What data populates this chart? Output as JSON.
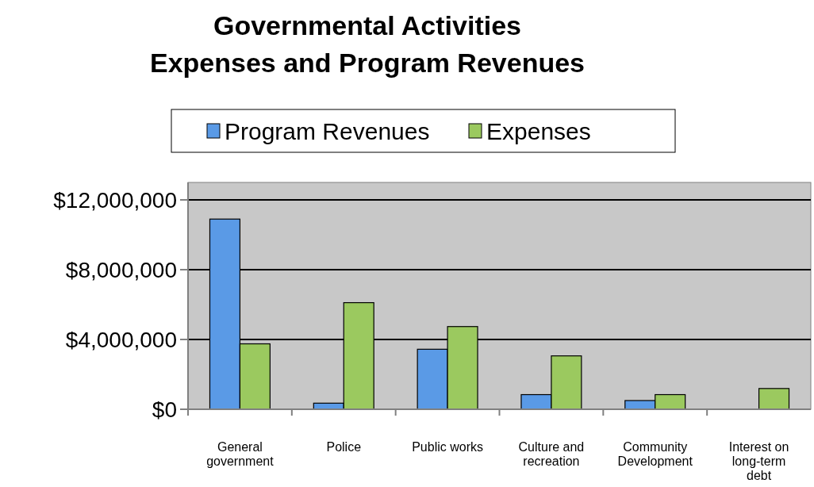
{
  "chart_data": {
    "type": "bar",
    "title": "Governmental Activities\nExpenses and Program Revenues",
    "categories": [
      "General government",
      "Police",
      "Public works",
      "Culture and recreation",
      "Community Development",
      "Interest on long-term debt"
    ],
    "series": [
      {
        "name": "Program Revenues",
        "color": "#5a9ae6",
        "values": [
          10900000,
          350000,
          3440000,
          840000,
          500000,
          0
        ]
      },
      {
        "name": "Expenses",
        "color": "#9bc95f",
        "values": [
          3750000,
          6110000,
          4740000,
          3060000,
          840000,
          1190000
        ]
      }
    ],
    "ylim": [
      0,
      13000000
    ],
    "yticks": [
      {
        "value": 0,
        "label": "$0"
      },
      {
        "value": 4000000,
        "label": "$4,000,000"
      },
      {
        "value": 8000000,
        "label": "$8,000,000"
      },
      {
        "value": 12000000,
        "label": "$12,000,000"
      }
    ],
    "grid": "y",
    "legend": "top"
  }
}
